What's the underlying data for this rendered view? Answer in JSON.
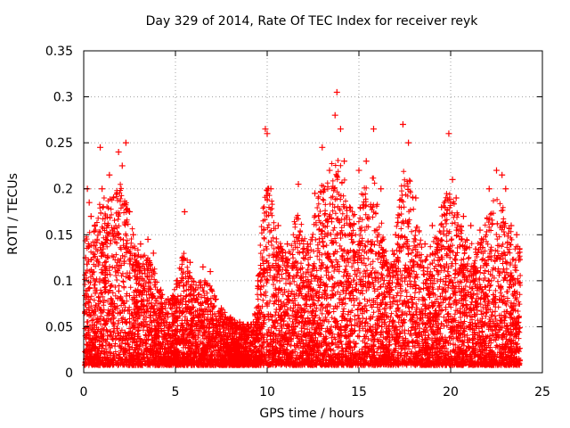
{
  "chart_data": {
    "type": "scatter",
    "title": "Day 329 of 2014, Rate Of TEC Index for receiver reyk",
    "xlabel": "GPS time / hours",
    "ylabel": "ROTI / TECUs",
    "xlim": [
      0,
      25
    ],
    "ylim": [
      0,
      0.35
    ],
    "xticks": [
      "0",
      "5",
      "10",
      "15",
      "20",
      "25"
    ],
    "yticks": [
      "0",
      "0.05",
      "0.1",
      "0.15",
      "0.2",
      "0.25",
      "0.3",
      "0.35"
    ],
    "grid": true,
    "marker": "+",
    "color": "#ff0000",
    "series": [
      {
        "name": "ROTI",
        "x": [
          0.1,
          0.2,
          0.3,
          0.4,
          0.6,
          0.9,
          1.0,
          1.4,
          1.9,
          2.1,
          2.3,
          2.5,
          2.7,
          3.1,
          3.5,
          3.8,
          4.2,
          4.6,
          5.1,
          5.5,
          5.8,
          6.0,
          6.5,
          6.9,
          7.2,
          7.5,
          8.0,
          8.5,
          9.0,
          9.5,
          9.9,
          10.0,
          10.2,
          10.6,
          11.1,
          11.7,
          12.2,
          12.6,
          13.0,
          13.4,
          13.7,
          13.8,
          14.0,
          14.2,
          14.5,
          15.0,
          15.4,
          15.8,
          16.2,
          16.5,
          17.0,
          17.4,
          17.7,
          18.1,
          18.6,
          19.0,
          19.5,
          19.9,
          20.1,
          20.3,
          20.7,
          21.1,
          21.6,
          22.1,
          22.5,
          22.8,
          23.0,
          23.3,
          23.6
        ],
        "y": [
          0.125,
          0.2,
          0.185,
          0.17,
          0.16,
          0.245,
          0.2,
          0.215,
          0.24,
          0.225,
          0.25,
          0.175,
          0.15,
          0.14,
          0.145,
          0.13,
          0.09,
          0.08,
          0.1,
          0.175,
          0.12,
          0.09,
          0.115,
          0.11,
          0.08,
          0.07,
          0.06,
          0.055,
          0.045,
          0.06,
          0.265,
          0.26,
          0.2,
          0.16,
          0.14,
          0.205,
          0.14,
          0.195,
          0.245,
          0.22,
          0.28,
          0.305,
          0.265,
          0.23,
          0.18,
          0.22,
          0.23,
          0.265,
          0.2,
          0.12,
          0.15,
          0.27,
          0.25,
          0.19,
          0.14,
          0.16,
          0.18,
          0.26,
          0.21,
          0.19,
          0.17,
          0.16,
          0.155,
          0.2,
          0.22,
          0.215,
          0.2,
          0.16,
          0.15
        ]
      }
    ]
  }
}
